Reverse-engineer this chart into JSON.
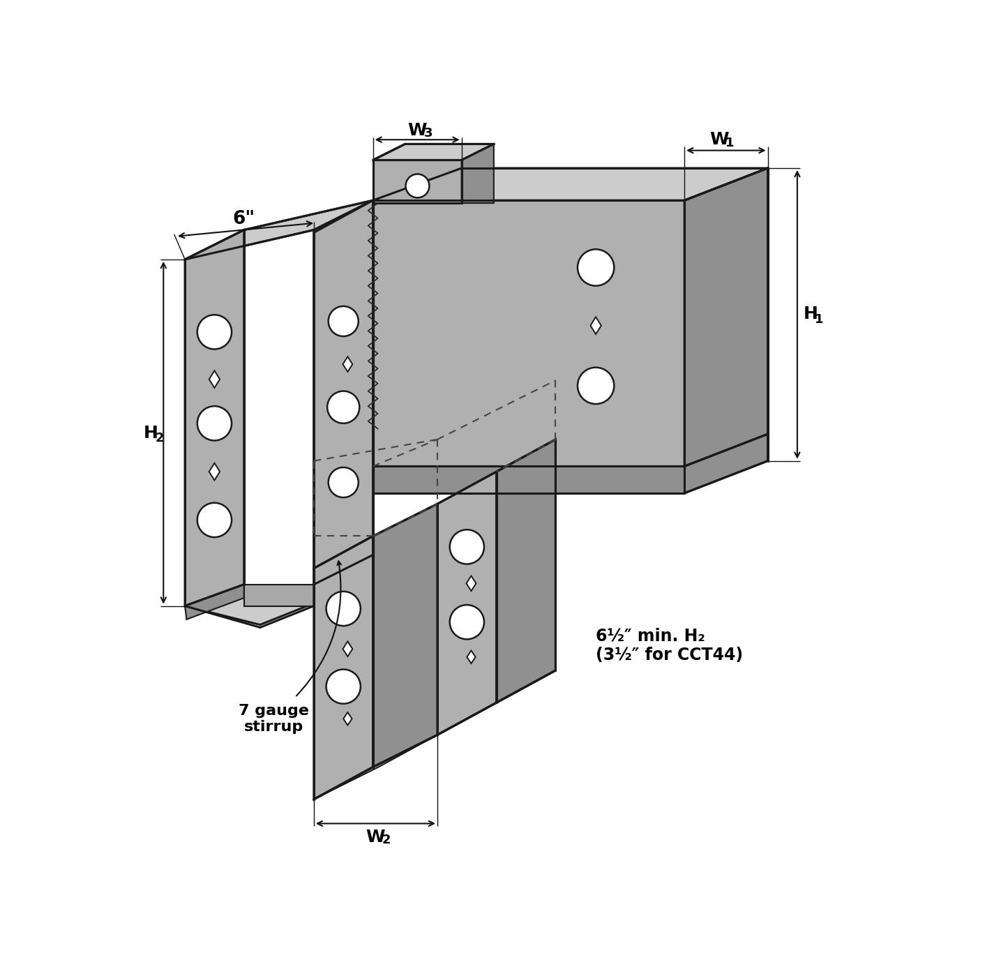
{
  "background_color": "#ffffff",
  "fill_main": "#b0b0b0",
  "fill_light": "#cccccc",
  "fill_dark": "#909090",
  "fill_inner": "#a8a8a8",
  "outline_color": "#1a1a1a",
  "dim_color": "#111111",
  "text_color": "#000000",
  "fig_width": 14.45,
  "fig_height": 13.99,
  "dpi": 100,
  "annotation_6in": "6\"",
  "annotation_w3": "W3",
  "annotation_w1": "W1",
  "annotation_w2": "W2",
  "annotation_h1": "H1",
  "annotation_h2": "H2",
  "annotation_gauge": "7 gauge\nstirrrup",
  "annotation_min_h2": "6½\" min. H2\n(3½\" for CCT44)"
}
